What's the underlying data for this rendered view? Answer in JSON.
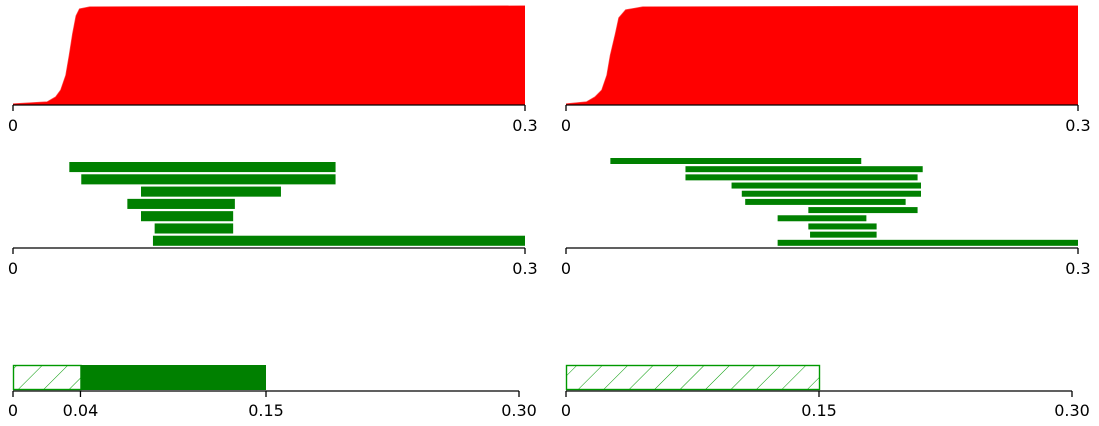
{
  "colors": {
    "curve": "#ff0000",
    "bars": "#008000",
    "hatch_stroke": "#009900",
    "axis": "#000000"
  },
  "chart_data": [
    {
      "type": "area",
      "panel": "top-left",
      "xlim": [
        0,
        0.3
      ],
      "ylim": [
        0,
        1
      ],
      "x_ticks": [
        "0",
        "0.3"
      ],
      "curve": [
        [
          0,
          0.01
        ],
        [
          0.02,
          0.03
        ],
        [
          0.025,
          0.08
        ],
        [
          0.028,
          0.15
        ],
        [
          0.031,
          0.3
        ],
        [
          0.033,
          0.5
        ],
        [
          0.035,
          0.72
        ],
        [
          0.037,
          0.9
        ],
        [
          0.039,
          0.97
        ],
        [
          0.045,
          0.99
        ],
        [
          0.3,
          1.0
        ]
      ]
    },
    {
      "type": "area",
      "panel": "top-right",
      "xlim": [
        0,
        0.3
      ],
      "ylim": [
        0,
        1
      ],
      "x_ticks": [
        "0",
        "0.3"
      ],
      "curve": [
        [
          0,
          0.01
        ],
        [
          0.012,
          0.03
        ],
        [
          0.017,
          0.08
        ],
        [
          0.021,
          0.15
        ],
        [
          0.024,
          0.3
        ],
        [
          0.026,
          0.5
        ],
        [
          0.029,
          0.72
        ],
        [
          0.031,
          0.88
        ],
        [
          0.035,
          0.96
        ],
        [
          0.045,
          0.99
        ],
        [
          0.3,
          1.0
        ]
      ]
    },
    {
      "type": "bar",
      "panel": "middle-left",
      "orientation": "horizontal",
      "xlim": [
        0,
        0.3
      ],
      "x_ticks": [
        "0",
        "0.3"
      ],
      "intervals": [
        [
          0.033,
          0.189
        ],
        [
          0.04,
          0.189
        ],
        [
          0.075,
          0.157
        ],
        [
          0.067,
          0.13
        ],
        [
          0.075,
          0.129
        ],
        [
          0.083,
          0.129
        ],
        [
          0.082,
          0.3
        ]
      ]
    },
    {
      "type": "bar",
      "panel": "middle-right",
      "orientation": "horizontal",
      "xlim": [
        0,
        0.3
      ],
      "x_ticks": [
        "0",
        "0.3"
      ],
      "intervals": [
        [
          0.026,
          0.173
        ],
        [
          0.07,
          0.209
        ],
        [
          0.07,
          0.206
        ],
        [
          0.097,
          0.208
        ],
        [
          0.103,
          0.208
        ],
        [
          0.105,
          0.199
        ],
        [
          0.142,
          0.206
        ],
        [
          0.124,
          0.176
        ],
        [
          0.142,
          0.182
        ],
        [
          0.143,
          0.182
        ],
        [
          0.124,
          0.3
        ]
      ]
    },
    {
      "type": "bar",
      "panel": "bottom-left",
      "orientation": "horizontal",
      "xlim": [
        0,
        0.3
      ],
      "x_ticks": [
        "0",
        "0.04",
        "0.15",
        "0.30"
      ],
      "hatched_range": [
        0,
        0.04
      ],
      "solid_range": [
        0.04,
        0.15
      ]
    },
    {
      "type": "bar",
      "panel": "bottom-right",
      "orientation": "horizontal",
      "xlim": [
        0,
        0.3
      ],
      "x_ticks": [
        "0",
        "0.15",
        "0.30"
      ],
      "hatched_range": [
        0,
        0.15
      ],
      "solid_range": null
    }
  ]
}
